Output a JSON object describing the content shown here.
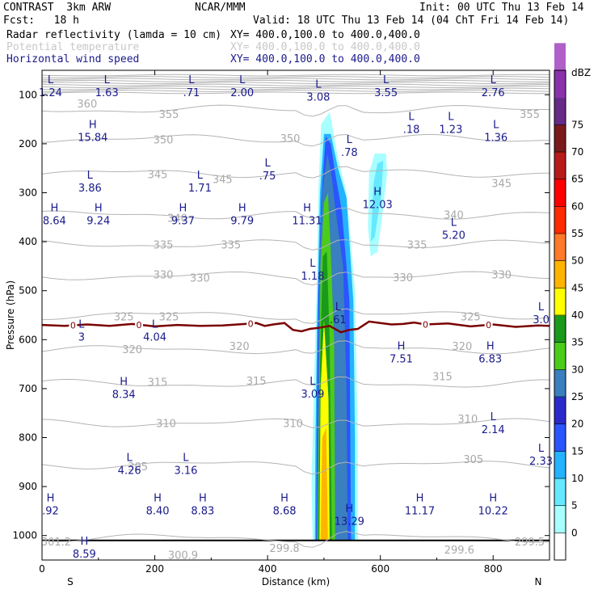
{
  "header": {
    "model": "CONTRAST  3km ARW",
    "center": "NCAR/MMM",
    "init": "Init: 00 UTC Thu 13 Feb 14",
    "fcst": "Fcst:   18 h",
    "valid": "Valid: 18 UTC Thu 13 Feb 14 (04 ChT Fri 14 Feb 14)",
    "field1": "Radar reflectivity (lamda = 10 cm)",
    "field1_xy": "XY= 400.0,100.0 to 400.0,400.0",
    "field2": "Potential temperature",
    "field2_xy": "XY= 400.0,100.0 to 400.0,400.0",
    "field3": "Horizontal wind speed",
    "field3_xy": "XY= 400.0,100.0 to 400.0,400.0"
  },
  "colorbar": {
    "unit": "dBZ",
    "levels": [
      "0",
      "5",
      "10",
      "15",
      "20",
      "25",
      "30",
      "35",
      "40",
      "45",
      "50",
      "55",
      "60",
      "65",
      "70",
      "75"
    ],
    "colors": [
      "#ffffff",
      "#a7ffff",
      "#66e8ff",
      "#25b2ff",
      "#2a55ff",
      "#2a2acc",
      "#3a7fbf",
      "#4ccc1a",
      "#1a9a1a",
      "#ffff00",
      "#ffb400",
      "#ff7a2a",
      "#ff2a00",
      "#ff0000",
      "#b81a1a",
      "#7a1a1a",
      "#662a88",
      "#8833aa",
      "#b060c8"
    ]
  },
  "chart_data": {
    "type": "contour-cross-section",
    "xlabel": "Distance (km)",
    "ylabel": "Pressure (hPa)",
    "xlim": [
      0,
      900
    ],
    "ylim": [
      1050,
      50
    ],
    "x_ticks": [
      "0",
      "200",
      "400",
      "600",
      "800"
    ],
    "x_tick_values": [
      0,
      200,
      400,
      600,
      800
    ],
    "y_ticks": [
      "100",
      "200",
      "300",
      "400",
      "500",
      "600",
      "700",
      "800",
      "900",
      "1000"
    ],
    "y_tick_values": [
      100,
      200,
      300,
      400,
      500,
      600,
      700,
      800,
      900,
      1000
    ],
    "end_labels": {
      "left": "S",
      "right": "N"
    },
    "theta_labels": [
      {
        "text": "360",
        "x": 80,
        "p": 119
      },
      {
        "text": "355",
        "x": 225,
        "p": 141
      },
      {
        "text": "355",
        "x": 865,
        "p": 141
      },
      {
        "text": "350",
        "x": 215,
        "p": 193
      },
      {
        "text": "350",
        "x": 440,
        "p": 190
      },
      {
        "text": "345",
        "x": 205,
        "p": 264
      },
      {
        "text": "345",
        "x": 320,
        "p": 274
      },
      {
        "text": "345",
        "x": 815,
        "p": 282
      },
      {
        "text": "340",
        "x": 240,
        "p": 353
      },
      {
        "text": "340",
        "x": 730,
        "p": 346
      },
      {
        "text": "335",
        "x": 215,
        "p": 407
      },
      {
        "text": "335",
        "x": 335,
        "p": 407
      },
      {
        "text": "335",
        "x": 665,
        "p": 407
      },
      {
        "text": "330",
        "x": 215,
        "p": 468
      },
      {
        "text": "330",
        "x": 280,
        "p": 475
      },
      {
        "text": "330",
        "x": 640,
        "p": 474
      },
      {
        "text": "330",
        "x": 815,
        "p": 468
      },
      {
        "text": "325",
        "x": 145,
        "p": 554
      },
      {
        "text": "325",
        "x": 225,
        "p": 554
      },
      {
        "text": "325",
        "x": 760,
        "p": 554
      },
      {
        "text": "320",
        "x": 160,
        "p": 621
      },
      {
        "text": "320",
        "x": 350,
        "p": 614
      },
      {
        "text": "320",
        "x": 745,
        "p": 614
      },
      {
        "text": "315",
        "x": 205,
        "p": 688
      },
      {
        "text": "315",
        "x": 380,
        "p": 685
      },
      {
        "text": "315",
        "x": 710,
        "p": 676
      },
      {
        "text": "310",
        "x": 220,
        "p": 772
      },
      {
        "text": "310",
        "x": 445,
        "p": 772
      },
      {
        "text": "310",
        "x": 755,
        "p": 763
      },
      {
        "text": "305",
        "x": 170,
        "p": 860
      },
      {
        "text": "305",
        "x": 765,
        "p": 845
      },
      {
        "text": "301.2",
        "x": 25,
        "p": 1014
      },
      {
        "text": "300.9",
        "x": 250,
        "p": 1041
      },
      {
        "text": "299.8",
        "x": 430,
        "p": 1027
      },
      {
        "text": "299.6",
        "x": 740,
        "p": 1030
      },
      {
        "text": "299.5",
        "x": 865,
        "p": 1014
      }
    ],
    "wind_extrema": [
      {
        "type": "L",
        "value": "1.24",
        "x": 15,
        "p": 85
      },
      {
        "type": "L",
        "value": "1.63",
        "x": 115,
        "p": 85
      },
      {
        "type": "L",
        "value": ".71",
        "x": 265,
        "p": 85
      },
      {
        "type": "L",
        "value": "2.00",
        "x": 355,
        "p": 85
      },
      {
        "type": "L",
        "value": "3.08",
        "x": 490,
        "p": 94
      },
      {
        "type": "L",
        "value": "3.55",
        "x": 610,
        "p": 85
      },
      {
        "type": "L",
        "value": "2.76",
        "x": 800,
        "p": 85
      },
      {
        "type": "H",
        "value": "15.84",
        "x": 90,
        "p": 176
      },
      {
        "type": "L",
        "value": ".18",
        "x": 655,
        "p": 160
      },
      {
        "type": "L",
        "value": "1.23",
        "x": 725,
        "p": 160
      },
      {
        "type": "L",
        "value": "1.36",
        "x": 805,
        "p": 176
      },
      {
        "type": "L",
        "value": ".78",
        "x": 545,
        "p": 207
      },
      {
        "type": "L",
        "value": "3.86",
        "x": 85,
        "p": 279
      },
      {
        "type": "L",
        "value": "1.71",
        "x": 280,
        "p": 279
      },
      {
        "type": "L",
        "value": ".75",
        "x": 400,
        "p": 255
      },
      {
        "type": "H",
        "value": "12.03",
        "x": 595,
        "p": 313
      },
      {
        "type": "H",
        "value": "8.64",
        "x": 22,
        "p": 346
      },
      {
        "type": "H",
        "value": "9.24",
        "x": 100,
        "p": 346
      },
      {
        "type": "H",
        "value": "9.37",
        "x": 250,
        "p": 346
      },
      {
        "type": "H",
        "value": "9.79",
        "x": 355,
        "p": 346
      },
      {
        "type": "H",
        "value": "11.31",
        "x": 470,
        "p": 346
      },
      {
        "type": "L",
        "value": "5.20",
        "x": 730,
        "p": 376
      },
      {
        "type": "L",
        "value": "1.18",
        "x": 480,
        "p": 459
      },
      {
        "type": "L",
        "value": ".61",
        "x": 525,
        "p": 548
      },
      {
        "type": "L",
        "value": "3.0",
        "x": 885,
        "p": 548
      },
      {
        "type": "L",
        "value": "3",
        "x": 70,
        "p": 584
      },
      {
        "type": "L",
        "value": "4.04",
        "x": 200,
        "p": 584
      },
      {
        "type": "H",
        "value": "7.51",
        "x": 637,
        "p": 628
      },
      {
        "type": "H",
        "value": "6.83",
        "x": 795,
        "p": 628
      },
      {
        "type": "H",
        "value": "8.34",
        "x": 145,
        "p": 701
      },
      {
        "type": "L",
        "value": "3.09",
        "x": 480,
        "p": 700
      },
      {
        "type": "L",
        "value": "2.14",
        "x": 800,
        "p": 773
      },
      {
        "type": "L",
        "value": "2.33",
        "x": 885,
        "p": 837
      },
      {
        "type": "L",
        "value": "4.26",
        "x": 155,
        "p": 856
      },
      {
        "type": "L",
        "value": "3.16",
        "x": 255,
        "p": 856
      },
      {
        "type": "H",
        "value": ".92",
        "x": 15,
        "p": 939
      },
      {
        "type": "H",
        "value": "8.40",
        "x": 205,
        "p": 939
      },
      {
        "type": "H",
        "value": "8.83",
        "x": 285,
        "p": 939
      },
      {
        "type": "H",
        "value": "8.68",
        "x": 430,
        "p": 939
      },
      {
        "type": "H",
        "value": "13.29",
        "x": 545,
        "p": 960
      },
      {
        "type": "H",
        "value": "11.17",
        "x": 670,
        "p": 939
      },
      {
        "type": "H",
        "value": "10.22",
        "x": 800,
        "p": 939
      },
      {
        "type": "H",
        "value": "8.59",
        "x": 75,
        "p": 1027
      }
    ],
    "freezing_level_label": "0",
    "freezing_level_markers_x": [
      55,
      172,
      370,
      680,
      792
    ],
    "freezing_level": [
      [
        0,
        570
      ],
      [
        40,
        572
      ],
      [
        80,
        569
      ],
      [
        120,
        572
      ],
      [
        160,
        568
      ],
      [
        200,
        573
      ],
      [
        240,
        570
      ],
      [
        280,
        572
      ],
      [
        320,
        571
      ],
      [
        360,
        568
      ],
      [
        380,
        566
      ],
      [
        395,
        572
      ],
      [
        410,
        569
      ],
      [
        430,
        566
      ],
      [
        445,
        580
      ],
      [
        460,
        583
      ],
      [
        475,
        578
      ],
      [
        490,
        576
      ],
      [
        510,
        572
      ],
      [
        530,
        585
      ],
      [
        545,
        580
      ],
      [
        560,
        578
      ],
      [
        580,
        563
      ],
      [
        600,
        566
      ],
      [
        620,
        569
      ],
      [
        640,
        568
      ],
      [
        660,
        565
      ],
      [
        680,
        569
      ],
      [
        720,
        567
      ],
      [
        760,
        573
      ],
      [
        800,
        569
      ],
      [
        840,
        574
      ],
      [
        880,
        571
      ],
      [
        900,
        572
      ]
    ],
    "reflectivity_cells": [
      {
        "dbz": 5,
        "poly": [
          [
            480,
            1010
          ],
          [
            478,
            900
          ],
          [
            482,
            700
          ],
          [
            487,
            500
          ],
          [
            490,
            300
          ],
          [
            495,
            160
          ],
          [
            510,
            135
          ],
          [
            525,
            230
          ],
          [
            540,
            300
          ],
          [
            555,
            500
          ],
          [
            560,
            800
          ],
          [
            560,
            1010
          ]
        ]
      },
      {
        "dbz": 5,
        "poly": [
          [
            580,
            260
          ],
          [
            590,
            220
          ],
          [
            610,
            220
          ],
          [
            612,
            260
          ],
          [
            605,
            330
          ],
          [
            595,
            420
          ],
          [
            583,
            430
          ],
          [
            578,
            370
          ]
        ]
      },
      {
        "dbz": 10,
        "poly": [
          [
            583,
            400
          ],
          [
            588,
            280
          ],
          [
            595,
            240
          ],
          [
            605,
            235
          ],
          [
            602,
            300
          ],
          [
            590,
            390
          ]
        ]
      },
      {
        "dbz": 15,
        "poly": [
          [
            484,
            1010
          ],
          [
            485,
            800
          ],
          [
            488,
            550
          ],
          [
            493,
            300
          ],
          [
            500,
            180
          ],
          [
            512,
            180
          ],
          [
            525,
            250
          ],
          [
            540,
            310
          ],
          [
            552,
            520
          ],
          [
            555,
            800
          ],
          [
            555,
            1010
          ]
        ]
      },
      {
        "dbz": 20,
        "poly": [
          [
            486,
            1010
          ],
          [
            488,
            700
          ],
          [
            490,
            500
          ],
          [
            495,
            320
          ],
          [
            503,
            185
          ],
          [
            512,
            200
          ],
          [
            520,
            260
          ],
          [
            532,
            340
          ],
          [
            545,
            520
          ],
          [
            548,
            1010
          ]
        ]
      },
      {
        "dbz": 30,
        "poly": [
          [
            487,
            1010
          ],
          [
            490,
            700
          ],
          [
            492,
            450
          ],
          [
            497,
            300
          ],
          [
            506,
            220
          ],
          [
            514,
            270
          ],
          [
            520,
            330
          ],
          [
            534,
            450
          ],
          [
            540,
            700
          ],
          [
            542,
            1010
          ]
        ]
      },
      {
        "dbz": 35,
        "poly": [
          [
            489,
            1010
          ],
          [
            492,
            650
          ],
          [
            494,
            450
          ],
          [
            500,
            320
          ],
          [
            507,
            300
          ],
          [
            512,
            420
          ],
          [
            518,
            600
          ],
          [
            520,
            1010
          ]
        ]
      },
      {
        "dbz": 40,
        "poly": [
          [
            490,
            1010
          ],
          [
            493,
            650
          ],
          [
            498,
            430
          ],
          [
            505,
            420
          ],
          [
            510,
            600
          ],
          [
            514,
            1010
          ]
        ]
      },
      {
        "dbz": 45,
        "poly": [
          [
            492,
            1010
          ],
          [
            494,
            700
          ],
          [
            500,
            560
          ],
          [
            508,
            720
          ],
          [
            510,
            1010
          ]
        ]
      },
      {
        "dbz": 50,
        "poly": [
          [
            494,
            1010
          ],
          [
            497,
            800
          ],
          [
            504,
            780
          ],
          [
            507,
            1010
          ]
        ]
      }
    ]
  }
}
